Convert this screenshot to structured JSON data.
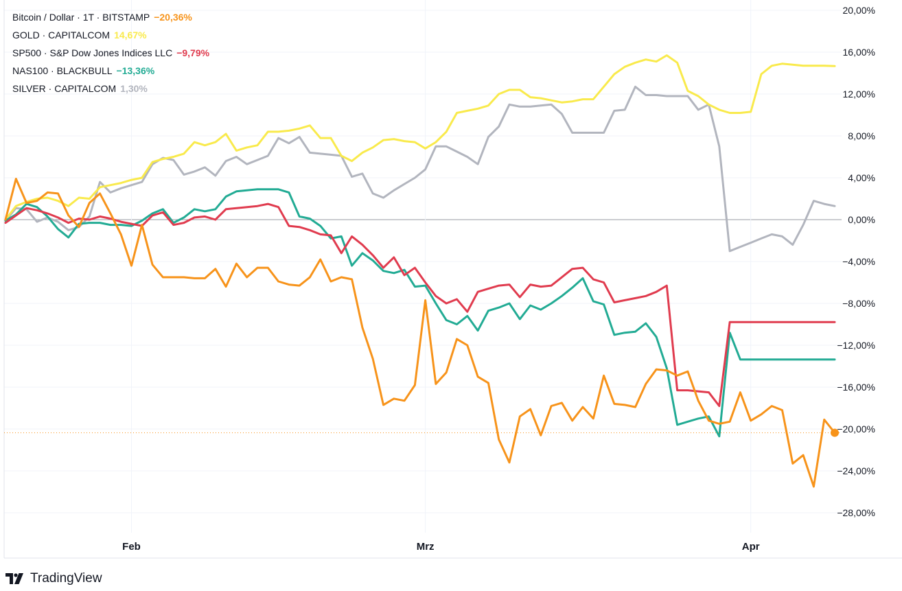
{
  "brand": {
    "name": "TradingView",
    "icon": "tradingview-logo-icon"
  },
  "colors": {
    "grid": "#f0f3fa",
    "zero": "#9598a1",
    "axis": "#e0e3eb",
    "text": "#131722"
  },
  "chart_data": {
    "type": "line",
    "x_axis_labels": [
      "Feb",
      "Mrz",
      "Apr"
    ],
    "x_axis_label_index": [
      12,
      40,
      71
    ],
    "y_axis_labels": [
      "20,00%",
      "16,00%",
      "12,00%",
      "8,00%",
      "4,00%",
      "0,00%",
      "−4,00%",
      "−8,00%",
      "−12,00%",
      "−16,00%",
      "−20,00%",
      "−24,00%",
      "−28,00%"
    ],
    "y_axis_values": [
      20,
      16,
      12,
      8,
      4,
      0,
      -4,
      -8,
      -12,
      -16,
      -20,
      -24,
      -28
    ],
    "ylim": [
      -30,
      21
    ],
    "x_count": 80,
    "legend_position": "top-left",
    "series": [
      {
        "name": "SILVER · CAPITALCOM",
        "value_label": "1,30%",
        "color": "#b2b5be",
        "x": [
          0,
          1,
          2,
          3,
          4,
          5,
          6,
          7,
          8,
          9,
          10,
          11,
          12,
          13,
          14,
          15,
          16,
          17,
          18,
          19,
          20,
          21,
          22,
          23,
          24,
          25,
          26,
          27,
          28,
          29,
          30,
          31,
          32,
          33,
          34,
          35,
          36,
          37,
          38,
          39,
          40,
          41,
          42,
          43,
          44,
          45,
          46,
          47,
          48,
          49,
          50,
          51,
          52,
          53,
          54,
          55,
          56,
          57,
          58,
          59,
          60,
          61,
          62,
          63,
          64,
          65,
          66,
          67,
          68,
          69,
          70,
          71,
          72,
          73,
          74,
          75,
          76,
          77,
          78,
          79
        ],
        "values": [
          -0.1,
          1.1,
          1.0,
          -0.2,
          0.2,
          -0.2,
          -1.0,
          -0.7,
          0.3,
          3.6,
          2.6,
          3.0,
          3.3,
          3.6,
          5.3,
          5.9,
          5.7,
          4.3,
          4.6,
          5.0,
          4.2,
          5.6,
          6.0,
          5.3,
          5.7,
          6.1,
          7.8,
          7.3,
          7.9,
          6.4,
          6.3,
          6.2,
          6.1,
          4.1,
          4.4,
          2.5,
          2.1,
          2.8,
          3.4,
          4.0,
          4.8,
          7.0,
          7.0,
          6.5,
          6.0,
          5.3,
          7.9,
          8.9,
          11.0,
          10.8,
          10.8,
          10.9,
          11.0,
          10.1,
          8.3,
          8.3,
          8.3,
          8.3,
          10.4,
          10.5,
          12.7,
          11.9,
          11.9,
          11.8,
          11.8,
          11.8,
          10.5,
          11.0,
          7.0,
          -3.0,
          -2.6,
          -2.2,
          -1.8,
          -1.4,
          -1.6,
          -2.4,
          -0.5,
          1.8,
          1.5,
          1.3
        ]
      },
      {
        "name": "GOLD · CAPITALCOM",
        "value_label": "14,67%",
        "color": "#f9ea4c",
        "x": [
          0,
          1,
          2,
          3,
          4,
          5,
          6,
          7,
          8,
          9,
          10,
          11,
          12,
          13,
          14,
          15,
          16,
          17,
          18,
          19,
          20,
          21,
          22,
          23,
          24,
          25,
          26,
          27,
          28,
          29,
          30,
          31,
          32,
          33,
          34,
          35,
          36,
          37,
          38,
          39,
          40,
          41,
          42,
          43,
          44,
          45,
          46,
          47,
          48,
          49,
          50,
          51,
          52,
          53,
          54,
          55,
          56,
          57,
          58,
          59,
          60,
          61,
          62,
          63,
          64,
          65,
          66,
          67,
          68,
          69,
          70,
          71,
          72,
          73,
          74,
          75,
          76,
          77,
          78,
          79
        ],
        "values": [
          0.0,
          1.3,
          1.7,
          2.0,
          2.1,
          1.8,
          1.3,
          2.1,
          2.0,
          3.1,
          3.3,
          3.5,
          3.8,
          4.0,
          5.5,
          5.8,
          6.0,
          6.3,
          7.4,
          7.1,
          7.4,
          8.2,
          6.6,
          6.9,
          7.1,
          8.4,
          8.4,
          8.5,
          8.7,
          9.0,
          7.8,
          7.8,
          6.1,
          5.6,
          6.4,
          6.9,
          7.6,
          7.7,
          7.5,
          7.4,
          6.8,
          7.4,
          8.4,
          10.2,
          10.4,
          10.6,
          10.9,
          12.0,
          12.4,
          12.4,
          11.7,
          11.6,
          11.4,
          11.2,
          11.3,
          11.5,
          11.5,
          12.7,
          13.9,
          14.6,
          15.0,
          15.3,
          15.1,
          15.7,
          15.0,
          12.3,
          11.8,
          11.0,
          10.5,
          10.2,
          10.2,
          10.3,
          13.9,
          14.7,
          14.9,
          14.8,
          14.7,
          14.7,
          14.7,
          14.67
        ]
      },
      {
        "name": "NAS100 · BLACKBULL",
        "value_label": "−13,36%",
        "color": "#22ab94",
        "x": [
          0,
          1,
          2,
          3,
          4,
          5,
          6,
          7,
          8,
          9,
          10,
          11,
          12,
          13,
          14,
          15,
          16,
          17,
          18,
          19,
          20,
          21,
          22,
          23,
          24,
          25,
          26,
          27,
          28,
          29,
          30,
          31,
          32,
          33,
          34,
          35,
          36,
          37,
          38,
          39,
          40,
          41,
          42,
          43,
          44,
          45,
          46,
          47,
          48,
          49,
          50,
          51,
          52,
          53,
          54,
          55,
          56,
          57,
          58,
          59,
          60,
          61,
          62,
          63,
          64,
          65,
          66,
          67,
          68,
          69,
          70,
          71,
          72,
          73,
          74,
          75,
          76,
          77,
          78,
          79
        ],
        "values": [
          -0.1,
          0.5,
          1.5,
          1.2,
          0.3,
          -0.9,
          -1.7,
          -0.4,
          -0.3,
          -0.3,
          -0.5,
          -0.5,
          -0.6,
          -0.1,
          0.6,
          1.0,
          -0.3,
          0.2,
          1.0,
          0.8,
          1.0,
          2.2,
          2.7,
          2.8,
          2.9,
          2.9,
          2.9,
          2.6,
          0.3,
          0.1,
          -0.6,
          -1.8,
          -1.6,
          -4.4,
          -3.2,
          -3.9,
          -4.9,
          -5.1,
          -4.8,
          -6.4,
          -6.3,
          -8.0,
          -9.6,
          -10.0,
          -9.2,
          -10.6,
          -8.7,
          -8.4,
          -8.0,
          -9.5,
          -8.2,
          -8.6,
          -8.0,
          -7.3,
          -6.5,
          -5.6,
          -7.8,
          -8.1,
          -11.0,
          -10.8,
          -10.7,
          -9.9,
          -11.2,
          -14.2,
          -19.6,
          -19.3,
          -19.0,
          -18.8,
          -20.7,
          -10.8,
          -13.36,
          -13.36,
          -13.36,
          -13.36,
          -13.36,
          -13.36,
          -13.36,
          -13.36,
          -13.36,
          -13.36
        ]
      },
      {
        "name": "SP500 · S&P Dow Jones Indices LLC",
        "value_label": "−9,79%",
        "color": "#e03b4e",
        "x": [
          0,
          1,
          2,
          3,
          4,
          5,
          6,
          7,
          8,
          9,
          10,
          11,
          12,
          13,
          14,
          15,
          16,
          17,
          18,
          19,
          20,
          21,
          22,
          23,
          24,
          25,
          26,
          27,
          28,
          29,
          30,
          31,
          32,
          33,
          34,
          35,
          36,
          37,
          38,
          39,
          40,
          41,
          42,
          43,
          44,
          45,
          46,
          47,
          48,
          49,
          50,
          51,
          52,
          53,
          54,
          55,
          56,
          57,
          58,
          59,
          60,
          61,
          62,
          63,
          64,
          65,
          66,
          67,
          68,
          69,
          70,
          71,
          72,
          73,
          74,
          75,
          76,
          77,
          78,
          79
        ],
        "values": [
          -0.3,
          0.4,
          1.1,
          0.9,
          0.6,
          0.2,
          -0.3,
          0.1,
          0.0,
          0.3,
          0.1,
          -0.2,
          -0.4,
          -0.6,
          0.4,
          0.7,
          -0.5,
          -0.3,
          0.2,
          0.3,
          0.0,
          1.0,
          1.1,
          1.2,
          1.3,
          1.5,
          1.2,
          -0.6,
          -0.7,
          -1.0,
          -1.4,
          -1.5,
          -3.2,
          -1.6,
          -2.4,
          -3.4,
          -4.6,
          -3.6,
          -5.3,
          -4.6,
          -6.0,
          -7.3,
          -8.0,
          -7.6,
          -8.8,
          -6.9,
          -6.6,
          -6.3,
          -6.2,
          -7.4,
          -6.2,
          -6.4,
          -6.3,
          -5.5,
          -4.7,
          -4.6,
          -5.7,
          -6.0,
          -7.9,
          -7.7,
          -7.5,
          -7.3,
          -6.9,
          -6.3,
          -16.3,
          -16.3,
          -16.4,
          -16.5,
          -17.8,
          -9.79,
          -9.79,
          -9.79,
          -9.79,
          -9.79,
          -9.79,
          -9.79,
          -9.79,
          -9.79,
          -9.79,
          -9.79
        ]
      },
      {
        "name": "Bitcoin / Dollar · 1T · BITSTAMP",
        "value_label": "−20,36%",
        "color": "#f7931a",
        "x": [
          0,
          1,
          2,
          3,
          4,
          5,
          6,
          7,
          8,
          9,
          10,
          11,
          12,
          13,
          14,
          15,
          16,
          17,
          18,
          19,
          20,
          21,
          22,
          23,
          24,
          25,
          26,
          27,
          28,
          29,
          30,
          31,
          32,
          33,
          34,
          35,
          36,
          37,
          38,
          39,
          40,
          41,
          42,
          43,
          44,
          45,
          46,
          47,
          48,
          49,
          50,
          51,
          52,
          53,
          54,
          55,
          56,
          57,
          58,
          59,
          60,
          61,
          62,
          63,
          64,
          65,
          66,
          67,
          68,
          69,
          70,
          71,
          72,
          73,
          74,
          75,
          76,
          77,
          78,
          79
        ],
        "values": [
          0.0,
          3.9,
          1.6,
          1.8,
          2.6,
          2.5,
          0.4,
          -0.7,
          1.6,
          2.5,
          0.6,
          -1.4,
          -4.4,
          -0.5,
          -4.3,
          -5.5,
          -5.5,
          -5.5,
          -5.6,
          -5.6,
          -4.7,
          -6.4,
          -4.2,
          -5.5,
          -4.6,
          -4.6,
          -5.9,
          -6.2,
          -6.3,
          -5.5,
          -3.8,
          -5.9,
          -5.5,
          -5.7,
          -10.3,
          -13.3,
          -17.7,
          -17.1,
          -17.3,
          -15.8,
          -7.7,
          -15.7,
          -14.6,
          -11.4,
          -12.0,
          -15.0,
          -15.6,
          -21.0,
          -23.2,
          -18.8,
          -18.1,
          -20.6,
          -17.8,
          -17.5,
          -19.2,
          -17.9,
          -19.0,
          -14.9,
          -17.6,
          -17.7,
          -17.9,
          -15.7,
          -14.3,
          -14.4,
          -14.9,
          -14.5,
          -17.3,
          -19.2,
          -19.5,
          -19.3,
          -16.5,
          -19.2,
          -18.6,
          -17.8,
          -18.2,
          -23.3,
          -22.5,
          -25.5,
          -19.1,
          -20.36
        ]
      }
    ]
  }
}
